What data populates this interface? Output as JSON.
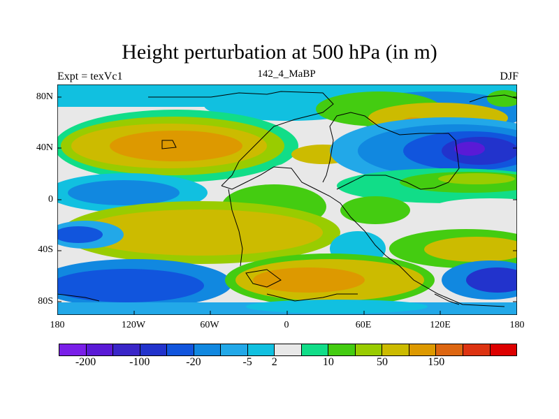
{
  "title": "Height perturbation at 500 hPa (in m)",
  "left_subtitle": "Expt = texVc1",
  "center_subtitle": "142_4_MaBP",
  "right_subtitle": "DJF",
  "y_ticks": [
    "80N",
    "40N",
    "0",
    "40S",
    "80S"
  ],
  "x_ticks": [
    "180",
    "120W",
    "60W",
    "0",
    "60E",
    "120E",
    "180"
  ],
  "colorbar": {
    "colors": [
      "#7a1fe8",
      "#5a1ad6",
      "#3a26c8",
      "#2233cc",
      "#1155dd",
      "#1188e0",
      "#22a8e8",
      "#11c0e0",
      "#e8e8e8",
      "#11dd88",
      "#44cc11",
      "#99cc00",
      "#ccbb00",
      "#dd9900",
      "#dd6611",
      "#dd3311",
      "#dd0000"
    ],
    "labels": [
      "-200",
      "-100",
      "-20",
      "-5",
      "2",
      "10",
      "50",
      "150"
    ]
  },
  "colors": {
    "grey": "#e6e6e6",
    "white": "#ffffff",
    "blue": "#1a55d6",
    "yellow": "#d6b900"
  }
}
